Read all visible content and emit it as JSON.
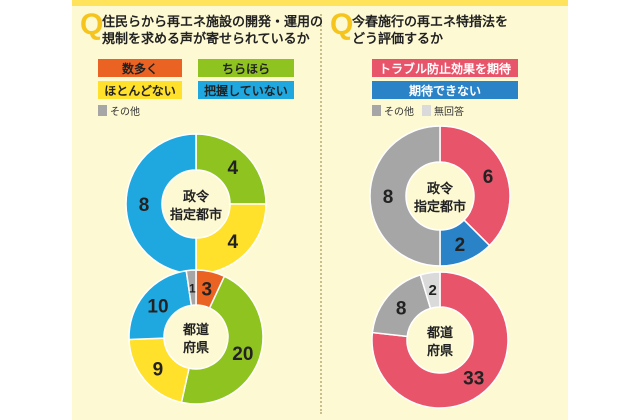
{
  "left_question": {
    "mark": "Q",
    "lines": [
      "住民らから再エネ施設の開発・運用の",
      "規制を求める声が寄せられているか"
    ],
    "legend": [
      {
        "label": "数多く",
        "color": "#ea6322",
        "text_color": "#222222"
      },
      {
        "label": "ちらほら",
        "color": "#8fc31f",
        "text_color": "#222222"
      },
      {
        "label": "ほとんどない",
        "color": "#ffe02b",
        "text_color": "#222222"
      },
      {
        "label": "把握していない",
        "color": "#1fa8e0",
        "text_color": "#222222"
      }
    ],
    "legend_other": {
      "label": "その他",
      "color": "#a6a6a6"
    }
  },
  "right_question": {
    "mark": "Q",
    "lines": [
      "今春施行の再エネ特措法を",
      "どう評価するか"
    ],
    "legend": [
      {
        "label": "トラブル防止効果を期待",
        "color": "#e8546a",
        "text_color": "#ffffff"
      },
      {
        "label": "期待できない",
        "color": "#2a83c7",
        "text_color": "#ffffff"
      }
    ],
    "legend_other": [
      {
        "label": "その他",
        "color": "#a6a6a6"
      },
      {
        "label": "無回答",
        "color": "#dadada"
      }
    ]
  },
  "chart_data": [
    {
      "type": "pie",
      "center_label": [
        "政令",
        "指定都市"
      ],
      "slices": [
        {
          "category": "ちらほら",
          "value": 4,
          "color": "#8fc31f"
        },
        {
          "category": "ほとんどない",
          "value": 4,
          "color": "#ffe02b"
        },
        {
          "category": "把握していない",
          "value": 8,
          "color": "#1fa8e0"
        }
      ]
    },
    {
      "type": "pie",
      "center_label": [
        "都道",
        "府県"
      ],
      "slices": [
        {
          "category": "数多く",
          "value": 3,
          "color": "#ea6322"
        },
        {
          "category": "ちらほら",
          "value": 20,
          "color": "#8fc31f"
        },
        {
          "category": "ほとんどない",
          "value": 9,
          "color": "#ffe02b"
        },
        {
          "category": "把握していない",
          "value": 10,
          "color": "#1fa8e0"
        },
        {
          "category": "その他",
          "value": 1,
          "color": "#a6a6a6"
        }
      ]
    },
    {
      "type": "pie",
      "center_label": [
        "政令",
        "指定都市"
      ],
      "slices": [
        {
          "category": "トラブル防止効果を期待",
          "value": 6,
          "color": "#e8546a"
        },
        {
          "category": "期待できない",
          "value": 2,
          "color": "#2a83c7"
        },
        {
          "category": "その他",
          "value": 8,
          "color": "#a6a6a6"
        }
      ]
    },
    {
      "type": "pie",
      "center_label": [
        "都道",
        "府県"
      ],
      "slices": [
        {
          "category": "トラブル防止効果を期待",
          "value": 33,
          "color": "#e8546a"
        },
        {
          "category": "その他",
          "value": 8,
          "color": "#a6a6a6"
        },
        {
          "category": "無回答",
          "value": 2,
          "color": "#dadada"
        }
      ]
    }
  ]
}
